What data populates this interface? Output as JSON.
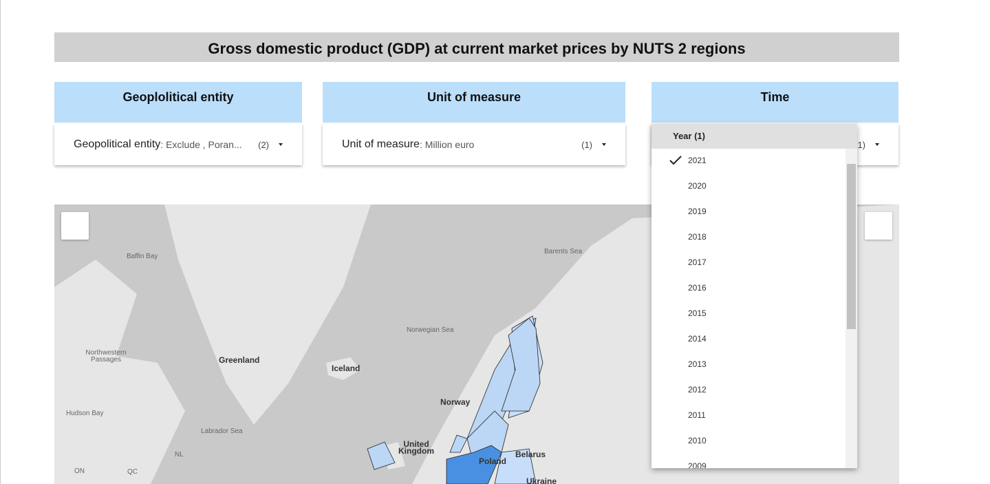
{
  "header": {
    "title": "Gross domestic product (GDP) at current market prices by NUTS 2 regions"
  },
  "filters": [
    {
      "heading": "Geoplolitical entity",
      "label": "Geopolitical entity",
      "value": "Exclude , Poran...",
      "count": "(2)"
    },
    {
      "heading": "Unit of measure",
      "label": "Unit of measure",
      "value": "Million euro",
      "count": "(1)"
    },
    {
      "heading": "Time",
      "count": "(1)"
    }
  ],
  "dropdown": {
    "header": "Year (1)",
    "items": [
      {
        "label": "2021",
        "checked": true
      },
      {
        "label": "2020"
      },
      {
        "label": "2019"
      },
      {
        "label": "2018"
      },
      {
        "label": "2017"
      },
      {
        "label": "2016"
      },
      {
        "label": "2015"
      },
      {
        "label": "2014"
      },
      {
        "label": "2013"
      },
      {
        "label": "2012"
      },
      {
        "label": "2011"
      },
      {
        "label": "2010"
      },
      {
        "label": "2009"
      }
    ]
  },
  "map": {
    "labels": [
      "Baffin Bay",
      "Barents Sea",
      "Norwegian Sea",
      "Northwestern Passages",
      "Greenland",
      "Iceland",
      "Norway",
      "Hudson Bay",
      "Labrador Sea",
      "United Kingdom",
      "Poland",
      "Belarus",
      "Ukraine",
      "NL",
      "QC",
      "ON"
    ]
  }
}
